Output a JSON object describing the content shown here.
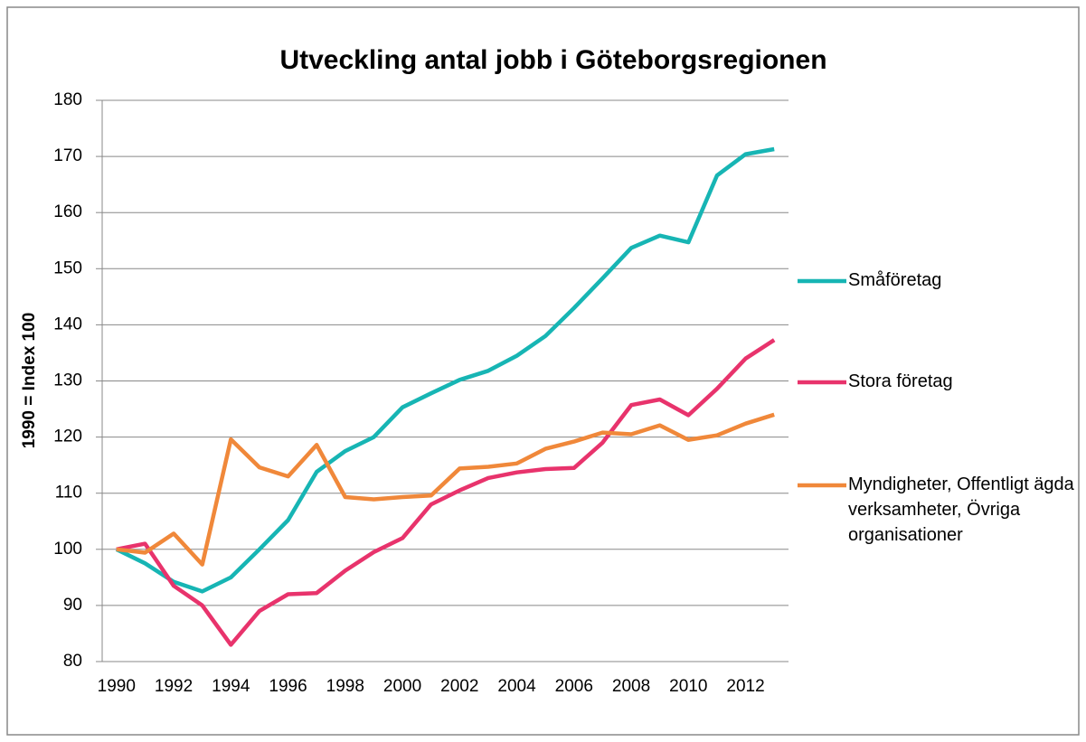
{
  "chart_data": {
    "type": "line",
    "title": "Utveckling antal jobb i Göteborgsregionen",
    "y_label": "1990 = Index 100",
    "x": [
      1990,
      1991,
      1992,
      1993,
      1994,
      1995,
      1996,
      1997,
      1998,
      1999,
      2000,
      2001,
      2002,
      2003,
      2004,
      2005,
      2006,
      2007,
      2008,
      2009,
      2010,
      2011,
      2012,
      2013
    ],
    "xlim": [
      1989.5,
      2013.5
    ],
    "xticks": [
      1990,
      1992,
      1994,
      1996,
      1998,
      2000,
      2002,
      2004,
      2006,
      2008,
      2010,
      2012
    ],
    "ylim": [
      80,
      180
    ],
    "yticks": [
      80,
      90,
      100,
      110,
      120,
      130,
      140,
      150,
      160,
      170,
      180
    ],
    "grid": true,
    "legend": "right",
    "series": [
      {
        "name": "Småföretag",
        "color": "#17b5b4",
        "values": [
          100,
          97.5,
          94.2,
          92.5,
          95,
          100,
          105.2,
          113.8,
          117.5,
          120,
          125.3,
          127.8,
          130.2,
          131.8,
          134.5,
          138,
          143,
          148.3,
          153.7,
          155.9,
          154.7,
          166.6,
          170.4,
          171.3
        ]
      },
      {
        "name": "Stora företag",
        "color": "#e8336c",
        "values": [
          100,
          101,
          93.5,
          90,
          83,
          89,
          92,
          92.2,
          96.2,
          99.5,
          102,
          108,
          110.5,
          112.7,
          113.7,
          114.3,
          114.5,
          119,
          125.7,
          126.7,
          123.9,
          128.6,
          134,
          137.3
        ]
      },
      {
        "name": "Myndigheter, Offentligt ägda verksamheter, Övriga organisationer",
        "color": "#f0883a",
        "values": [
          100,
          99.4,
          102.8,
          97.3,
          119.6,
          114.6,
          113,
          118.6,
          109.3,
          108.9,
          109.3,
          109.6,
          114.4,
          114.7,
          115.3,
          117.9,
          119.2,
          120.8,
          120.5,
          122.1,
          119.5,
          120.3,
          122.4,
          124
        ]
      }
    ]
  }
}
